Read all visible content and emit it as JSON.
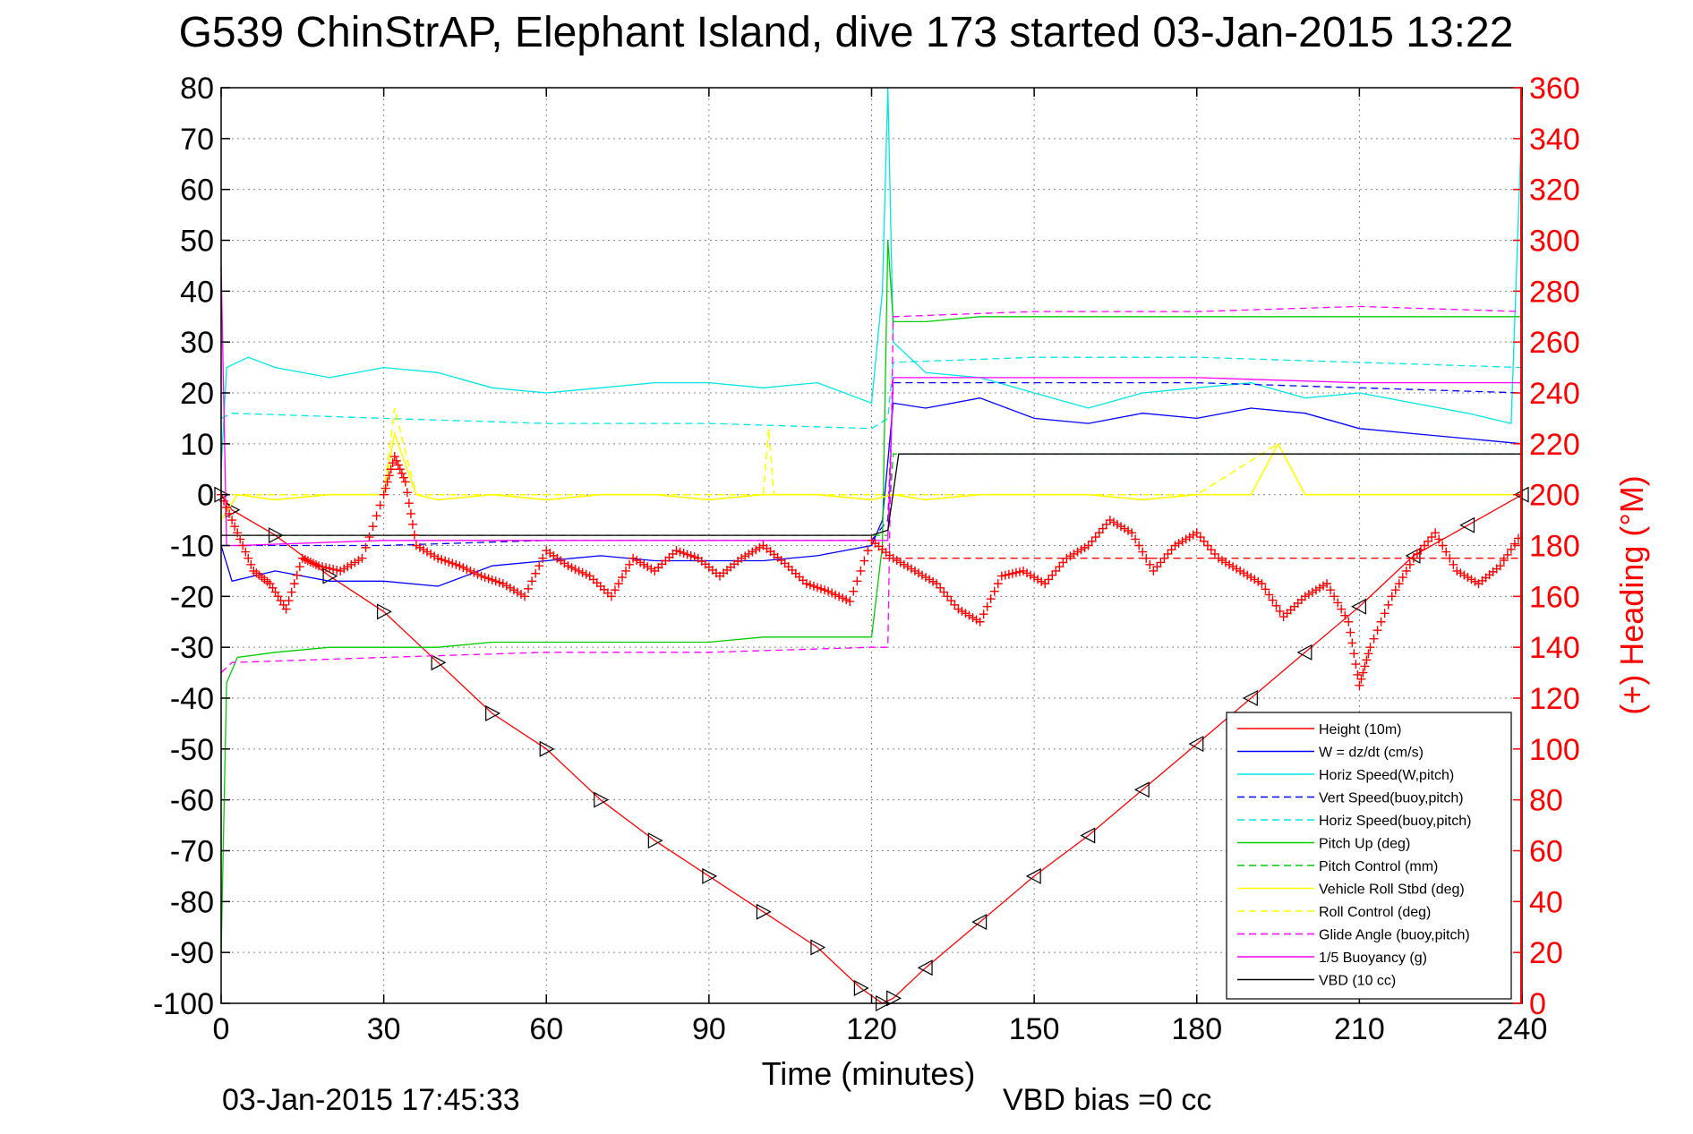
{
  "chart_data": {
    "type": "line",
    "title": "G539 ChinStrAP, Elephant Island, dive 173 started 03-Jan-2015 13:22",
    "xlabel": "Time (minutes)",
    "ylabel": "",
    "y2label": "(+) Heading (°M)",
    "xlim": [
      0,
      240
    ],
    "ylim": [
      -100,
      80
    ],
    "y2lim": [
      0,
      360
    ],
    "xticks": [
      0,
      30,
      60,
      90,
      120,
      150,
      180,
      210,
      240
    ],
    "yticks": [
      80,
      70,
      60,
      50,
      40,
      30,
      20,
      10,
      0,
      -10,
      -20,
      -30,
      -40,
      -50,
      -60,
      -70,
      -80,
      -90,
      -100
    ],
    "y2ticks": [
      360,
      340,
      320,
      300,
      280,
      260,
      240,
      220,
      200,
      180,
      160,
      140,
      120,
      100,
      80,
      60,
      40,
      20,
      0
    ],
    "grid": true,
    "legend_position": "bottom-right",
    "footer_left": "03-Jan-2015 17:45:33",
    "footer_right": "VBD bias =0 cc",
    "colors": {
      "height": "#ff0000",
      "w": "#0000ff",
      "cyan": "#00e5e5",
      "green": "#00cc00",
      "yellow": "#ffff00",
      "magenta": "#ff00ff",
      "black": "#000000",
      "heading": "#ff0000"
    },
    "series": [
      {
        "name": "Height (10m)",
        "color": "#ff0000",
        "dash": false,
        "marker": "triangle",
        "x": [
          0,
          2,
          10,
          20,
          30,
          40,
          50,
          60,
          70,
          80,
          90,
          100,
          110,
          118,
          122,
          124,
          130,
          140,
          150,
          160,
          170,
          180,
          190,
          200,
          210,
          220,
          230,
          240
        ],
        "y": [
          0,
          -3,
          -8,
          -16,
          -23,
          -33,
          -43,
          -50,
          -60,
          -68,
          -75,
          -82,
          -89,
          -97,
          -100,
          -99,
          -93,
          -84,
          -75,
          -67,
          -58,
          -49,
          -40,
          -31,
          -22,
          -12,
          -6,
          0
        ]
      },
      {
        "name": "W = dz/dt (cm/s)",
        "color": "#0000ff",
        "dash": false,
        "x": [
          0,
          2,
          10,
          20,
          30,
          40,
          50,
          60,
          70,
          80,
          90,
          100,
          110,
          120,
          122,
          124,
          130,
          140,
          150,
          160,
          170,
          180,
          190,
          200,
          210,
          220,
          230,
          240
        ],
        "y": [
          -10,
          -17,
          -15,
          -17,
          -17,
          -18,
          -14,
          -13,
          -12,
          -13,
          -13,
          -13,
          -12,
          -10,
          -5,
          18,
          17,
          19,
          15,
          14,
          16,
          15,
          17,
          16,
          13,
          12,
          11,
          10
        ]
      },
      {
        "name": "Horiz Speed(W,pitch)",
        "color": "#00e5e5",
        "dash": false,
        "x": [
          0,
          1,
          5,
          10,
          20,
          30,
          40,
          50,
          60,
          70,
          80,
          90,
          100,
          110,
          120,
          122,
          123,
          124,
          130,
          140,
          150,
          160,
          170,
          180,
          190,
          200,
          210,
          220,
          230,
          238,
          240
        ],
        "y": [
          5,
          25,
          27,
          25,
          23,
          25,
          24,
          21,
          20,
          21,
          22,
          22,
          21,
          22,
          18,
          40,
          80,
          30,
          24,
          23,
          20,
          17,
          20,
          21,
          22,
          19,
          20,
          18,
          16,
          14,
          75
        ]
      },
      {
        "name": "Vert Speed(buoy,pitch)",
        "color": "#0000ff",
        "dash": true,
        "x": [
          0,
          2,
          30,
          60,
          90,
          120,
          123,
          124,
          150,
          180,
          210,
          240
        ],
        "y": [
          -10,
          -10,
          -10,
          -9,
          -9,
          -9,
          -5,
          22,
          22,
          22,
          21,
          20
        ]
      },
      {
        "name": "Horiz Speed(buoy,pitch)",
        "color": "#00e5e5",
        "dash": true,
        "x": [
          0,
          2,
          30,
          60,
          90,
          120,
          123,
          124,
          150,
          180,
          210,
          240
        ],
        "y": [
          15,
          16,
          15,
          14,
          14,
          13,
          15,
          26,
          27,
          27,
          26,
          25
        ]
      },
      {
        "name": "Pitch Up (deg)",
        "color": "#00cc00",
        "dash": false,
        "x": [
          0,
          1,
          3,
          10,
          20,
          30,
          40,
          50,
          60,
          70,
          80,
          90,
          100,
          110,
          120,
          122,
          123,
          124,
          130,
          140,
          150,
          160,
          170,
          180,
          190,
          200,
          210,
          220,
          230,
          240
        ],
        "y": [
          -90,
          -37,
          -32,
          -31,
          -30,
          -30,
          -30,
          -29,
          -29,
          -29,
          -29,
          -29,
          -28,
          -28,
          -28,
          -10,
          50,
          34,
          34,
          35,
          35,
          35,
          35,
          35,
          35,
          35,
          35,
          35,
          35,
          35
        ]
      },
      {
        "name": "Pitch Control (mm)",
        "color": "#00cc00",
        "dash": true,
        "x": [
          0,
          2,
          30,
          60,
          90,
          120,
          123,
          124,
          150,
          180,
          210,
          240
        ],
        "y": [
          -8,
          -8,
          -8,
          -8,
          -8,
          -8,
          -8,
          8,
          8,
          8,
          8,
          8
        ]
      },
      {
        "name": "Vehicle Roll Stbd (deg)",
        "color": "#ffff00",
        "dash": false,
        "x": [
          0,
          3,
          10,
          20,
          30,
          32,
          36,
          40,
          50,
          60,
          70,
          80,
          90,
          100,
          110,
          120,
          124,
          130,
          140,
          150,
          160,
          170,
          180,
          190,
          195,
          200,
          210,
          220,
          230,
          240
        ],
        "y": [
          -5,
          0,
          -1,
          0,
          0,
          12,
          0,
          -1,
          0,
          -1,
          0,
          0,
          -1,
          0,
          0,
          -1,
          0,
          -1,
          0,
          0,
          0,
          -1,
          0,
          0,
          10,
          0,
          0,
          0,
          0,
          0
        ]
      },
      {
        "name": "Roll Control (deg)",
        "color": "#ffff00",
        "dash": true,
        "x": [
          0,
          30,
          32,
          36,
          60,
          100,
          101,
          102,
          120,
          124,
          150,
          180,
          195,
          200,
          240
        ],
        "y": [
          0,
          0,
          17,
          0,
          0,
          0,
          13,
          0,
          0,
          0,
          0,
          0,
          10,
          0,
          0
        ]
      },
      {
        "name": "Glide Angle (buoy,pitch)",
        "color": "#ff00ff",
        "dash": true,
        "x": [
          0,
          2,
          30,
          60,
          90,
          120,
          123,
          124,
          150,
          180,
          210,
          240
        ],
        "y": [
          -35,
          -33,
          -32,
          -31,
          -31,
          -30,
          -30,
          35,
          36,
          36,
          37,
          36
        ]
      },
      {
        "name": "1/5 Buoyancy (g)",
        "color": "#ff00ff",
        "dash": false,
        "x": [
          0,
          1,
          3,
          30,
          60,
          90,
          120,
          123,
          124,
          150,
          180,
          210,
          240
        ],
        "y": [
          45,
          -10,
          -10,
          -9,
          -9,
          -9,
          -9,
          -9,
          23,
          23,
          23,
          22,
          22
        ]
      },
      {
        "name": "VBD (10 cc)",
        "color": "#000000",
        "dash": false,
        "x": [
          0,
          2,
          30,
          60,
          90,
          120,
          123,
          125,
          150,
          180,
          210,
          240
        ],
        "y": [
          -8,
          -8,
          -8,
          -8,
          -8,
          -8,
          -7,
          8,
          8,
          8,
          8,
          8
        ]
      }
    ],
    "heading": {
      "name": "(+) Heading (°M)",
      "color": "#ff0000",
      "marker": "+",
      "axis": "right",
      "x": [
        0,
        3,
        6,
        9,
        12,
        15,
        18,
        22,
        26,
        30,
        32,
        34,
        36,
        40,
        44,
        48,
        52,
        56,
        60,
        64,
        68,
        72,
        76,
        80,
        84,
        88,
        92,
        96,
        100,
        104,
        108,
        112,
        116,
        120,
        124,
        128,
        132,
        136,
        140,
        144,
        148,
        152,
        156,
        160,
        164,
        168,
        172,
        176,
        180,
        184,
        188,
        192,
        196,
        200,
        204,
        208,
        210,
        212,
        216,
        220,
        224,
        228,
        232,
        236,
        240
      ],
      "y": [
        200,
        185,
        170,
        165,
        155,
        175,
        172,
        170,
        175,
        200,
        215,
        205,
        180,
        175,
        172,
        168,
        165,
        160,
        178,
        172,
        168,
        160,
        175,
        170,
        178,
        175,
        168,
        175,
        180,
        173,
        165,
        162,
        158,
        182,
        175,
        170,
        165,
        155,
        150,
        168,
        170,
        165,
        175,
        180,
        190,
        185,
        170,
        180,
        185,
        175,
        170,
        165,
        152,
        160,
        165,
        150,
        125,
        140,
        160,
        175,
        185,
        170,
        165,
        172,
        185
      ]
    },
    "heading_target": {
      "name": "",
      "color": "#ff0000",
      "dash": true,
      "x": [
        122,
        240
      ],
      "y": [
        175,
        175
      ],
      "axis": "right"
    }
  }
}
